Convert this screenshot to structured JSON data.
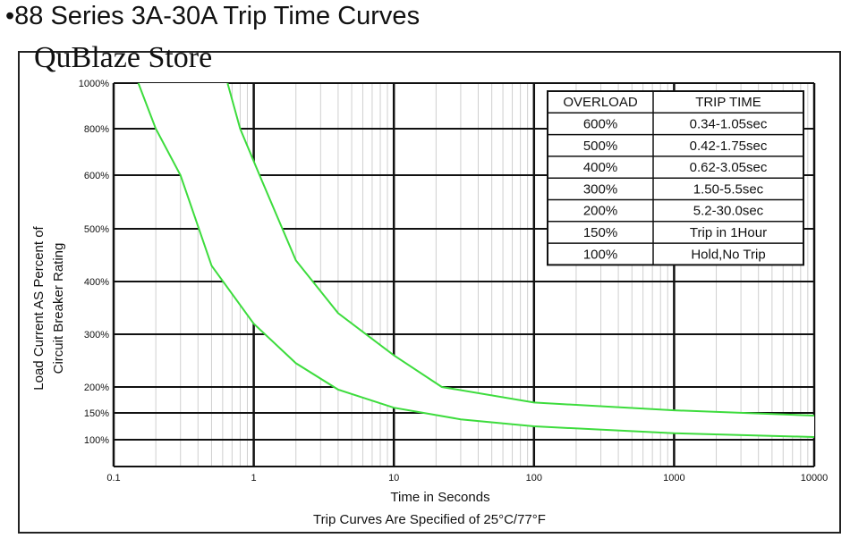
{
  "title": "•88 Series 3A-30A Trip Time Curves",
  "watermark": "QuBlaze Store",
  "chart_data": {
    "type": "line",
    "title": "",
    "xlabel": "Time in Seconds",
    "xlabel_note": "Trip Curves Are Specified of 25°C/77°F",
    "ylabel_line1": "Load Current AS Percent of",
    "ylabel_line2": "Circuit Breaker Rating",
    "x_scale": "log",
    "xlim": [
      0.1,
      10000
    ],
    "x_ticks": [
      "0.1",
      "1",
      "10",
      "100",
      "1000",
      "10000"
    ],
    "y_ticks": [
      {
        "value": 100,
        "label": "100%"
      },
      {
        "value": 150,
        "label": "150%"
      },
      {
        "value": 200,
        "label": "200%"
      },
      {
        "value": 300,
        "label": "300%"
      },
      {
        "value": 400,
        "label": "400%"
      },
      {
        "value": 500,
        "label": "500%"
      },
      {
        "value": 600,
        "label": "600%"
      },
      {
        "value": 800,
        "label": "800%"
      },
      {
        "value": 1000,
        "label": "1000%"
      }
    ],
    "grid": true,
    "series": [
      {
        "color": "#3ddc3d",
        "points": [
          [
            0.15,
            1000
          ],
          [
            0.2,
            800
          ],
          [
            0.3,
            600
          ],
          [
            0.5,
            430
          ],
          [
            1,
            320
          ],
          [
            2,
            245
          ],
          [
            4,
            195
          ],
          [
            10,
            160
          ],
          [
            30,
            138
          ],
          [
            100,
            125
          ],
          [
            1000,
            112
          ],
          [
            10000,
            105
          ]
        ]
      },
      {
        "color": "#3ddc3d",
        "points": [
          [
            0.65,
            1000
          ],
          [
            0.8,
            800
          ],
          [
            1.1,
            600
          ],
          [
            2,
            440
          ],
          [
            4,
            340
          ],
          [
            10,
            260
          ],
          [
            22,
            200
          ],
          [
            100,
            170
          ],
          [
            1000,
            155
          ],
          [
            10000,
            145
          ]
        ]
      }
    ],
    "table": {
      "headers": [
        "OVERLOAD",
        "TRIP TIME"
      ],
      "rows": [
        [
          "600%",
          "0.34-1.05sec"
        ],
        [
          "500%",
          "0.42-1.75sec"
        ],
        [
          "400%",
          "0.62-3.05sec"
        ],
        [
          "300%",
          "1.50-5.5sec"
        ],
        [
          "200%",
          "5.2-30.0sec"
        ],
        [
          "150%",
          "Trip in 1Hour"
        ],
        [
          "100%",
          "Hold,No Trip"
        ]
      ]
    }
  }
}
